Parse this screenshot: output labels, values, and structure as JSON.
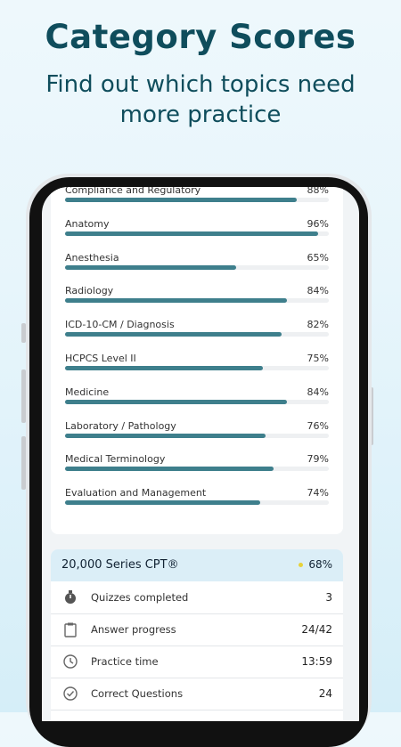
{
  "header": {
    "title": "Category Scores",
    "subtitle": "Find out which topics need more practice"
  },
  "bar_range": [
    0,
    100
  ],
  "categories": [
    {
      "name": "Compliance and Regulatory",
      "value": 88,
      "label": "88%"
    },
    {
      "name": "Anatomy",
      "value": 96,
      "label": "96%"
    },
    {
      "name": "Anesthesia",
      "value": 65,
      "label": "65%"
    },
    {
      "name": "Radiology",
      "value": 84,
      "label": "84%"
    },
    {
      "name": "ICD-10-CM / Diagnosis",
      "value": 82,
      "label": "82%"
    },
    {
      "name": "HCPCS Level II",
      "value": 75,
      "label": "75%"
    },
    {
      "name": "Medicine",
      "value": 84,
      "label": "84%"
    },
    {
      "name": "Laboratory / Pathology",
      "value": 76,
      "label": "76%"
    },
    {
      "name": "Medical Terminology",
      "value": 79,
      "label": "79%"
    },
    {
      "name": "Evaluation and Management",
      "value": 74,
      "label": "74%"
    }
  ],
  "summary": {
    "title": "20,000 Series CPT®",
    "score": "68%",
    "rows": [
      {
        "label": "Quizzes completed",
        "value": "3"
      },
      {
        "label": "Answer progress",
        "value": "24/42"
      },
      {
        "label": "Practice time",
        "value": "13:59"
      },
      {
        "label": "Correct Questions",
        "value": "24"
      }
    ]
  }
}
